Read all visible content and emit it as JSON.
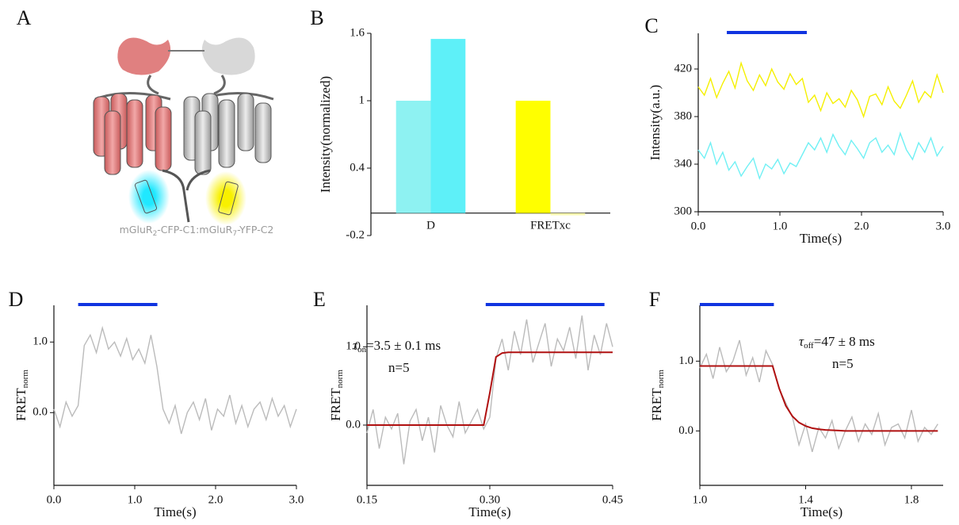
{
  "diagram": {
    "panel": "A",
    "label_parts": [
      "mGluR",
      "2",
      "-CFP-C1:mGluR",
      "7",
      "-YFP-C2"
    ]
  },
  "chart_data": [
    {
      "type": "bar",
      "panel": "B",
      "ylabel": "Intensity(normalized)",
      "categories": [
        "D",
        "FRETxc"
      ],
      "series": [
        {
          "colors": [
            "#8ef2f2",
            "#ffff00"
          ],
          "values": [
            1,
            1
          ]
        },
        {
          "colors": [
            "#5ef0f8",
            "#ffffb0"
          ],
          "values": [
            1.55,
            -0.02
          ]
        }
      ],
      "ylim": [
        -0.2,
        1.6
      ],
      "yticks": [
        -0.2,
        0.4,
        1,
        1.6
      ]
    },
    {
      "type": "line",
      "panel": "C",
      "ylabel": "Intensity(a.u.)",
      "xlabel": "Time(s)",
      "x": [
        0,
        0.075,
        0.15,
        0.225,
        0.3,
        0.375,
        0.45,
        0.525,
        0.6,
        0.675,
        0.75,
        0.825,
        0.9,
        0.975,
        1.05,
        1.125,
        1.2,
        1.275,
        1.35,
        1.425,
        1.5,
        1.575,
        1.65,
        1.725,
        1.8,
        1.875,
        1.95,
        2.025,
        2.1,
        2.175,
        2.25,
        2.325,
        2.4,
        2.475,
        2.55,
        2.625,
        2.7,
        2.775,
        2.85,
        2.925,
        3.0
      ],
      "series": [
        {
          "color": "#f5f000",
          "values": [
            405,
            398,
            412,
            396,
            408,
            418,
            404,
            425,
            410,
            402,
            415,
            406,
            420,
            409,
            403,
            416,
            407,
            412,
            392,
            398,
            385,
            400,
            391,
            395,
            388,
            402,
            394,
            380,
            397,
            399,
            390,
            405,
            393,
            387,
            398,
            410,
            392,
            401,
            396,
            415,
            400
          ]
        },
        {
          "color": "#70f0f4",
          "values": [
            352,
            345,
            358,
            340,
            350,
            335,
            342,
            330,
            338,
            345,
            328,
            340,
            336,
            344,
            332,
            341,
            338,
            348,
            358,
            352,
            362,
            350,
            365,
            355,
            348,
            360,
            353,
            345,
            358,
            362,
            350,
            356,
            348,
            366,
            352,
            344,
            358,
            350,
            362,
            347,
            355
          ]
        }
      ],
      "stimulus": [
        0.35,
        1.33
      ],
      "stimulus_color": "#1034e0",
      "xlim": [
        0,
        3
      ],
      "ylim": [
        300,
        450
      ],
      "xticks": [
        {
          "value": 0,
          "label": "0.0"
        },
        {
          "value": 1,
          "label": "1.0"
        },
        {
          "value": 2,
          "label": "2.0"
        },
        {
          "value": 3,
          "label": "3.0"
        }
      ],
      "yticks": [
        300,
        340,
        380,
        420
      ]
    },
    {
      "type": "line",
      "panel": "D",
      "ylabel": "FRET",
      "ylabel_sub": "norm",
      "xlabel": "Time(s)",
      "x": [
        0,
        0.075,
        0.15,
        0.225,
        0.3,
        0.375,
        0.45,
        0.525,
        0.6,
        0.675,
        0.75,
        0.825,
        0.9,
        0.975,
        1.05,
        1.125,
        1.2,
        1.275,
        1.35,
        1.425,
        1.5,
        1.575,
        1.65,
        1.725,
        1.8,
        1.875,
        1.95,
        2.025,
        2.1,
        2.175,
        2.25,
        2.325,
        2.4,
        2.475,
        2.55,
        2.625,
        2.7,
        2.775,
        2.85,
        2.925,
        3.0
      ],
      "series": [
        {
          "color": "#bbbbbb",
          "values": [
            0.05,
            -0.2,
            0.15,
            -0.05,
            0.1,
            0.95,
            1.1,
            0.85,
            1.2,
            0.9,
            1.0,
            0.8,
            1.05,
            0.75,
            0.9,
            0.7,
            1.1,
            0.65,
            0.05,
            -0.15,
            0.1,
            -0.3,
            0.0,
            0.15,
            -0.1,
            0.2,
            -0.25,
            0.05,
            -0.05,
            0.25,
            -0.15,
            0.1,
            -0.2,
            0.05,
            0.15,
            -0.1,
            0.2,
            -0.05,
            0.1,
            -0.2,
            0.05
          ]
        }
      ],
      "stimulus": [
        0.3,
        1.28
      ],
      "stimulus_color": "#1034e0",
      "xlim": [
        0,
        3
      ],
      "ylim": [
        -1.03,
        1.52
      ],
      "xticks": [
        {
          "value": 0,
          "label": "0.0"
        },
        {
          "value": 1,
          "label": "1.0"
        },
        {
          "value": 2,
          "label": "2.0"
        },
        {
          "value": 3,
          "label": "3.0"
        }
      ],
      "yticks": [
        {
          "value": 0,
          "label": "0.0"
        },
        {
          "value": 1,
          "label": "1.0"
        }
      ]
    },
    {
      "type": "line",
      "panel": "E",
      "ylabel": "FRET",
      "ylabel_sub": "norm",
      "xlabel": "Time(s)",
      "x": [
        0.15,
        0.1575,
        0.165,
        0.1725,
        0.18,
        0.1875,
        0.195,
        0.2025,
        0.21,
        0.2175,
        0.225,
        0.2325,
        0.24,
        0.2475,
        0.255,
        0.2625,
        0.27,
        0.2775,
        0.285,
        0.2925,
        0.3,
        0.3075,
        0.315,
        0.3225,
        0.33,
        0.3375,
        0.345,
        0.3525,
        0.36,
        0.3675,
        0.375,
        0.3825,
        0.39,
        0.3975,
        0.405,
        0.4125,
        0.42,
        0.4275,
        0.435,
        0.4425,
        0.45
      ],
      "series": [
        {
          "color": "#bbbbbb",
          "values": [
            -0.1,
            0.2,
            -0.3,
            0.1,
            -0.05,
            0.15,
            -0.5,
            0.05,
            0.2,
            -0.2,
            0.1,
            -0.35,
            0.25,
            0.0,
            -0.15,
            0.3,
            -0.1,
            0.05,
            0.2,
            -0.05,
            0.1,
            0.85,
            1.1,
            0.7,
            1.2,
            0.9,
            1.35,
            0.8,
            1.05,
            1.3,
            0.75,
            1.1,
            0.95,
            1.25,
            0.85,
            1.4,
            0.7,
            1.15,
            0.9,
            1.3,
            1.0
          ]
        },
        {
          "color": "#b01010",
          "values": [
            0,
            0,
            0,
            0,
            0,
            0,
            0,
            0,
            0,
            0,
            0,
            0,
            0,
            0,
            0,
            0,
            0,
            0,
            0,
            0,
            0.41,
            0.87,
            0.92,
            0.93,
            0.93,
            0.93,
            0.93,
            0.93,
            0.93,
            0.93,
            0.93,
            0.93,
            0.93,
            0.93,
            0.93,
            0.93,
            0.93,
            0.93,
            0.93,
            0.93,
            0.93
          ]
        }
      ],
      "stimulus": [
        0.295,
        0.44
      ],
      "stimulus_color": "#1034e0",
      "annotations": [
        {
          "symbol": "τ",
          "sub": "on",
          "text": "=3.5 ± 0.1 ms"
        },
        {
          "text": "n=5"
        }
      ],
      "xlim": [
        0.15,
        0.45
      ],
      "ylim": [
        -0.77,
        1.53
      ],
      "xticks": [
        0.15,
        {
          "value": 0.3,
          "label": "0.30"
        },
        0.45
      ],
      "yticks": [
        {
          "value": 0,
          "label": "0.0"
        },
        {
          "value": 1,
          "label": "1.0"
        }
      ]
    },
    {
      "type": "line",
      "panel": "F",
      "ylabel": "FRET",
      "ylabel_sub": "norm",
      "xlabel": "Time(s)",
      "x": [
        1.0,
        1.025,
        1.05,
        1.075,
        1.1,
        1.125,
        1.15,
        1.175,
        1.2,
        1.225,
        1.25,
        1.275,
        1.3,
        1.325,
        1.35,
        1.375,
        1.4,
        1.425,
        1.45,
        1.475,
        1.5,
        1.525,
        1.55,
        1.575,
        1.6,
        1.625,
        1.65,
        1.675,
        1.7,
        1.725,
        1.75,
        1.775,
        1.8,
        1.825,
        1.85,
        1.875,
        1.9
      ],
      "series": [
        {
          "color": "#bbbbbb",
          "values": [
            0.9,
            1.1,
            0.75,
            1.2,
            0.85,
            1.0,
            1.3,
            0.8,
            1.05,
            0.7,
            1.15,
            0.95,
            0.6,
            0.4,
            0.2,
            -0.2,
            0.1,
            -0.3,
            0.05,
            -0.1,
            0.15,
            -0.25,
            0.0,
            0.2,
            -0.15,
            0.1,
            -0.05,
            0.25,
            -0.2,
            0.05,
            0.1,
            -0.1,
            0.3,
            -0.15,
            0.05,
            -0.05,
            0.1
          ]
        },
        {
          "color": "#b01010",
          "values": [
            0.93,
            0.93,
            0.93,
            0.93,
            0.93,
            0.93,
            0.93,
            0.93,
            0.93,
            0.93,
            0.93,
            0.93,
            0.61,
            0.36,
            0.21,
            0.12,
            0.07,
            0.04,
            0.025,
            0.015,
            0.01,
            0.005,
            0,
            0,
            0,
            0,
            0,
            0,
            0,
            0,
            0,
            0,
            0,
            0,
            0,
            0,
            0
          ]
        }
      ],
      "stimulus": [
        1.0,
        1.28
      ],
      "stimulus_color": "#1034e0",
      "annotations": [
        {
          "symbol": "τ",
          "sub": "off",
          "text": "=47 ± 8 ms"
        },
        {
          "text": "n=5"
        }
      ],
      "xlim": [
        1.0,
        1.92
      ],
      "ylim": [
        -0.78,
        1.8
      ],
      "xticks": [
        {
          "value": 1,
          "label": "1.0"
        },
        1.4,
        1.8
      ],
      "yticks": [
        {
          "value": 0,
          "label": "0.0"
        },
        {
          "value": 1,
          "label": "1.0"
        }
      ]
    }
  ]
}
